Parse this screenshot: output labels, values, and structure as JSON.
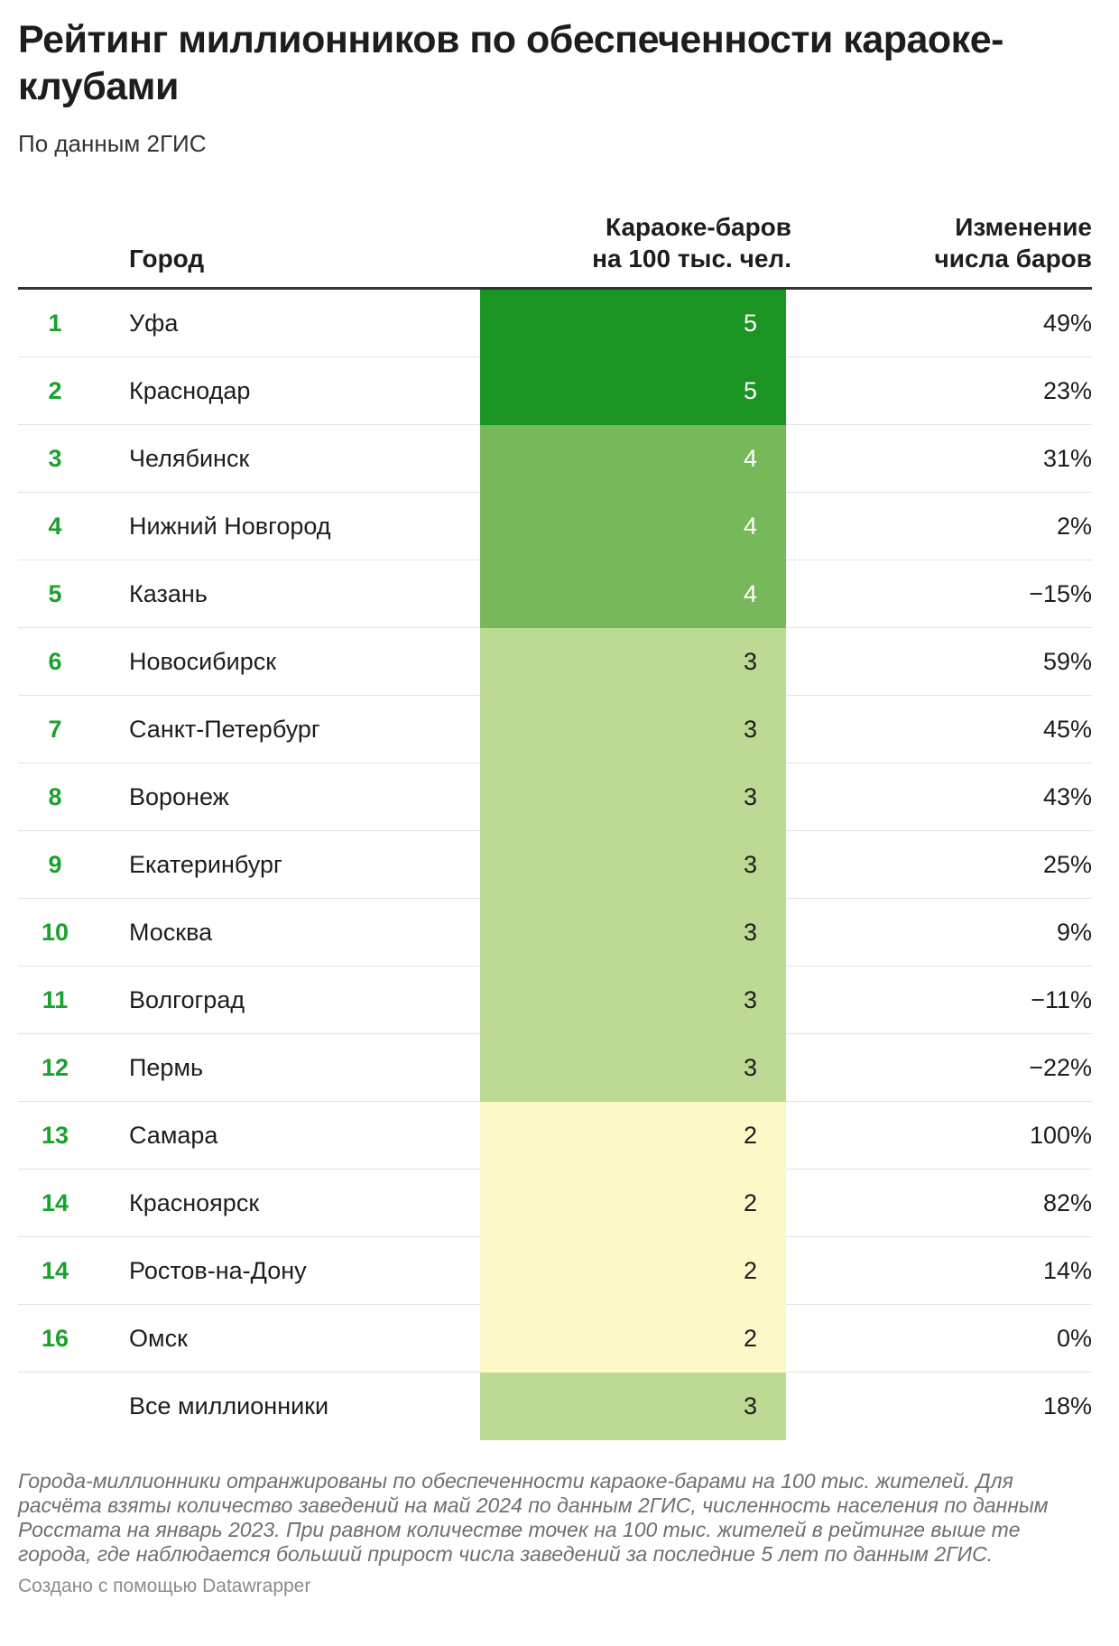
{
  "title": "Рейтинг миллионников по обеспеченности караоке-клубами",
  "subtitle": "По данным 2ГИС",
  "header": {
    "city": "Город",
    "value_line1": "Караоке-баров",
    "value_line2": "на 100 тыс. чел.",
    "change_line1": "Изменение",
    "change_line2": "числа баров"
  },
  "colors": {
    "rank": "#1aa12e",
    "scale": {
      "5": "#1a9423",
      "4": "#76b85a",
      "3": "#bcda93",
      "2": "#fdf8c8"
    }
  },
  "chart_data": {
    "type": "table",
    "columns": [
      "",
      "Город",
      "Караоке-баров на 100 тыс. чел.",
      "Изменение числа баров"
    ],
    "rows": [
      {
        "rank": "1",
        "city": "Уфа",
        "value": "5",
        "change": "49%"
      },
      {
        "rank": "2",
        "city": "Краснодар",
        "value": "5",
        "change": "23%"
      },
      {
        "rank": "3",
        "city": "Челябинск",
        "value": "4",
        "change": "31%"
      },
      {
        "rank": "4",
        "city": "Нижний Новгород",
        "value": "4",
        "change": "2%"
      },
      {
        "rank": "5",
        "city": "Казань",
        "value": "4",
        "change": "−15%"
      },
      {
        "rank": "6",
        "city": "Новосибирск",
        "value": "3",
        "change": "59%"
      },
      {
        "rank": "7",
        "city": "Санкт-Петербург",
        "value": "3",
        "change": "45%"
      },
      {
        "rank": "8",
        "city": "Воронеж",
        "value": "3",
        "change": "43%"
      },
      {
        "rank": "9",
        "city": "Екатеринбург",
        "value": "3",
        "change": "25%"
      },
      {
        "rank": "10",
        "city": "Москва",
        "value": "3",
        "change": "9%"
      },
      {
        "rank": "11",
        "city": "Волгоград",
        "value": "3",
        "change": "−11%"
      },
      {
        "rank": "12",
        "city": "Пермь",
        "value": "3",
        "change": "−22%"
      },
      {
        "rank": "13",
        "city": "Самара",
        "value": "2",
        "change": "100%"
      },
      {
        "rank": "14",
        "city": "Красноярск",
        "value": "2",
        "change": "82%"
      },
      {
        "rank": "14",
        "city": "Ростов-на-Дону",
        "value": "2",
        "change": "14%"
      },
      {
        "rank": "16",
        "city": "Омск",
        "value": "2",
        "change": "0%"
      },
      {
        "rank": "",
        "city": "Все миллионники",
        "value": "3",
        "change": "18%"
      }
    ]
  },
  "note": "Города-миллионники отранжированы по обеспеченности караоке-барами на 100 тыс. жителей. Для расчёта взяты количество заведений на май 2024 по данным 2ГИС, численность населения по данным Росстата на январь 2023. При равном количестве точек на 100 тыс. жителей в рейтинге выше те города, где наблюдается больший прирост числа заведений за последние 5 лет по данным 2ГИС.",
  "credit": "Создано с помощью Datawrapper"
}
